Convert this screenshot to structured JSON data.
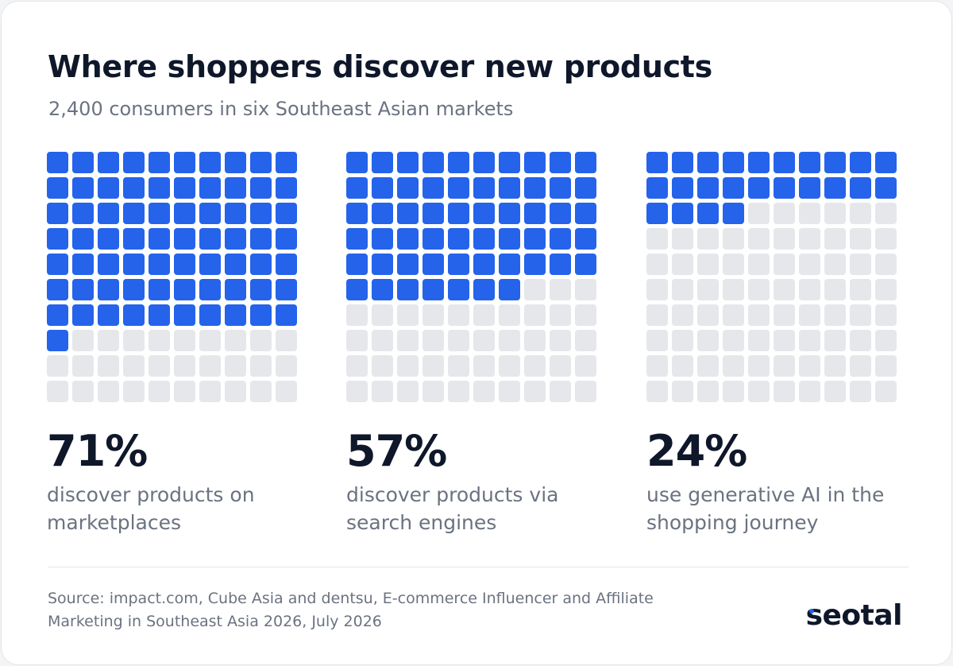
{
  "title": "Where shoppers discover new products",
  "subtitle": "2,400 consumers in six Southeast Asian markets",
  "colors": {
    "filled": "#2563eb",
    "empty": "#e5e7eb",
    "text": "#0f172a",
    "muted": "#6b7280"
  },
  "chart_data": {
    "type": "waffle",
    "grid": {
      "rows": 10,
      "cols": 10,
      "total": 100
    },
    "panels": [
      {
        "value": 71,
        "label": "71%",
        "description": "discover products on marketplaces"
      },
      {
        "value": 57,
        "label": "57%",
        "description": "discover products via search engines"
      },
      {
        "value": 24,
        "label": "24%",
        "description": "use generative AI in the shopping journey"
      }
    ]
  },
  "footer": {
    "source": "Source: impact.com, Cube Asia and dentsu, E-commerce Influencer and Affiliate Marketing in Southeast Asia 2026, July 2026",
    "brand": "seotal"
  }
}
